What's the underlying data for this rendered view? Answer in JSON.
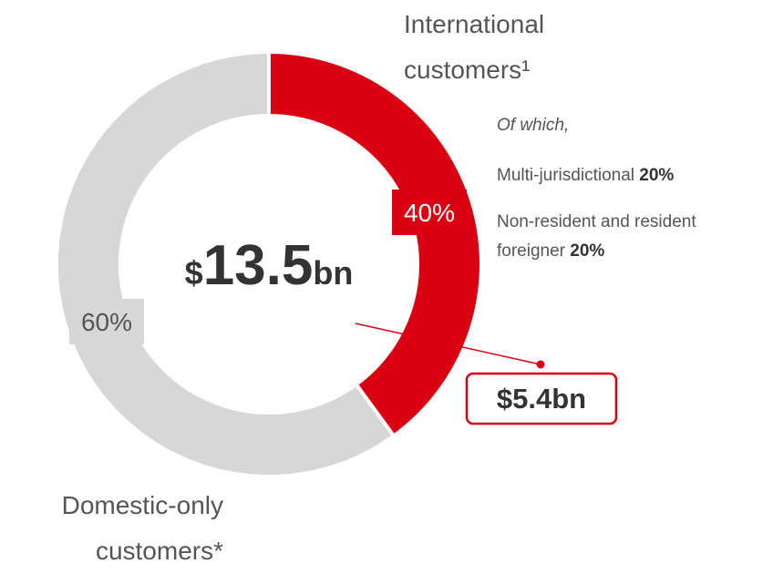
{
  "chart_data": {
    "type": "donut",
    "categories": [
      "International customers¹",
      "Domestic-only customers*"
    ],
    "values": [
      40,
      60
    ],
    "value_labels": [
      "40%",
      "60%"
    ],
    "colors": [
      "#db0011",
      "#d7d7d7"
    ],
    "center_label": "$13.5bn",
    "callout": "$5.4bn",
    "breakdown_title": "Of which,",
    "breakdown": [
      {
        "label": "Multi-jurisdictional",
        "value": 20,
        "value_label": "20%"
      },
      {
        "label": "Non-resident and resident foreigner",
        "value": 20,
        "value_label": "20%"
      }
    ]
  }
}
